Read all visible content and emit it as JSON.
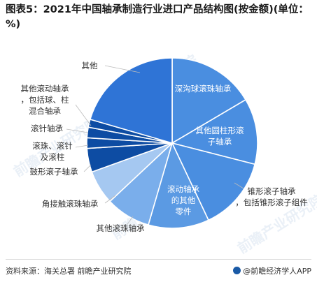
{
  "chart_data": {
    "type": "pie",
    "title": "图表5：2021年中国轴承制造行业进口产品结构图(按金额)(单位：%)",
    "slices": [
      {
        "label": "深沟球滚珠轴承",
        "value": 16.5,
        "color": "#4a8ee0"
      },
      {
        "label": "其他圆柱形滚子轴承",
        "value": 12.5,
        "color": "#4a8ee0"
      },
      {
        "label": "锥形滚子轴承，包括锥形滚子组件",
        "value": 14.0,
        "color": "#4a8ee0"
      },
      {
        "label": "滚动轴承的其他零件",
        "value": 11.5,
        "color": "#5b9ae3"
      },
      {
        "label": "其他滚珠轴承",
        "value": 8.5,
        "color": "#7aaeeb"
      },
      {
        "label": "角接触滚珠轴承",
        "value": 6.5,
        "color": "#a5c8f1"
      },
      {
        "label": "鼓形滚子轴承",
        "value": 4.5,
        "color": "#0d4ca3"
      },
      {
        "label": "滚珠、滚针及滚柱",
        "value": 2.0,
        "color": "#0d4ca3"
      },
      {
        "label": "滚针轴承",
        "value": 2.0,
        "color": "#0d4ca3"
      },
      {
        "label": "其他滚动轴承，包括球、柱混合轴承",
        "value": 1.5,
        "color": "#0d4ca3"
      },
      {
        "label": "其他",
        "value": 20.5,
        "color": "#2f74d6"
      }
    ]
  },
  "footer": {
    "source": "资料来源：海关总署 前瞻产业研究院",
    "brand": "@前瞻经济学人APP"
  },
  "watermark": "前瞻产业研究院"
}
